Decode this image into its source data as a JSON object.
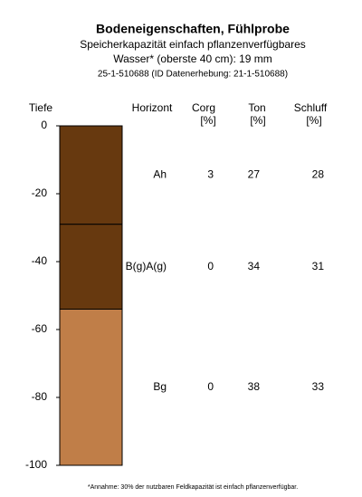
{
  "chart_data": {
    "type": "soil-profile",
    "title": "Bodeneigenschaften, Fühlprobe",
    "subtitle": [
      "Speicherkapazität einfach pflanzenverfügbares",
      "Wasser* (oberste 40 cm): 19 mm"
    ],
    "id_line": "25-1-510688 (ID Datenerhebung: 21-1-510688)",
    "y_label": "Tiefe",
    "columns": {
      "horizon": "Horizont",
      "corg": [
        "Corg",
        "[%]"
      ],
      "ton": [
        "Ton",
        "[%]"
      ],
      "schluff": [
        "Schluff",
        "[%]"
      ]
    },
    "ylim": [
      -100,
      0
    ],
    "yticks": [
      0,
      -20,
      -40,
      -60,
      -80,
      -100
    ],
    "layers": [
      {
        "horizon": "Ah",
        "top": 0,
        "bottom": -29,
        "corg": 3,
        "ton": 27,
        "schluff": 28,
        "color": "#67390f"
      },
      {
        "horizon": "B(g)A(g)",
        "top": -29,
        "bottom": -54,
        "corg": 0,
        "ton": 34,
        "schluff": 31,
        "color": "#67390f"
      },
      {
        "horizon": "Bg",
        "top": -54,
        "bottom": -100,
        "corg": 0,
        "ton": 38,
        "schluff": 33,
        "color": "#c07e48"
      }
    ],
    "footnote": "*Annahme: 30% der nutzbaren Feldkapazität ist einfach pflanzenverfügbar."
  }
}
